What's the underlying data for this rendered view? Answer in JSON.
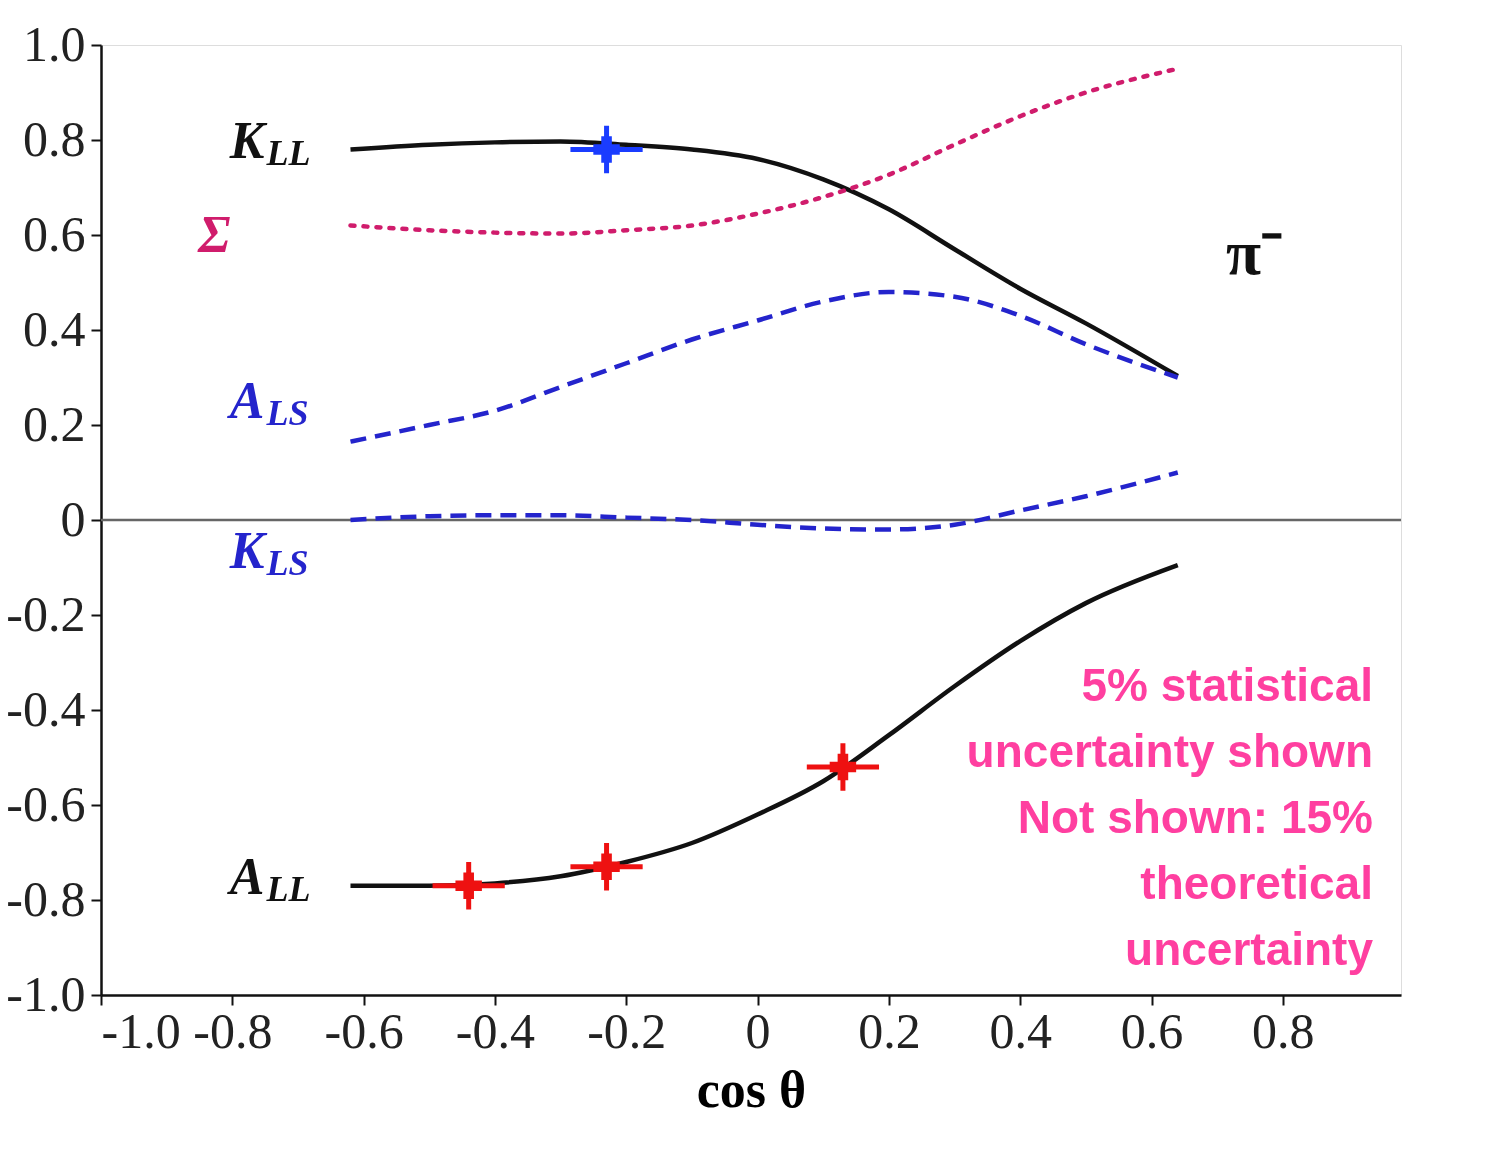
{
  "chart_data": {
    "type": "line",
    "xlabel": "cos θ",
    "annotations": [
      "π⁻",
      "5% statistical",
      "uncertainty shown",
      "Not shown: 15%",
      "theoretical",
      "uncertainty"
    ],
    "xlim": [
      -1.0,
      0.98
    ],
    "ylim": [
      -1.0,
      1.0
    ],
    "xticks": [
      {
        "value": -1.0,
        "label": "-1.0"
      },
      -0.8,
      -0.6,
      -0.4,
      -0.2,
      0,
      0.2,
      0.4,
      0.6,
      0.8
    ],
    "yticks": [
      {
        "value": -1.0,
        "label": "-1.0"
      },
      -0.8,
      -0.6,
      -0.4,
      -0.2,
      0,
      0.2,
      0.4,
      0.6,
      0.8,
      {
        "value": 1.0,
        "label": "1.0"
      }
    ],
    "grid": false,
    "ref_lines": [
      {
        "axis": "y",
        "value": 0,
        "color": "#666666"
      }
    ],
    "series": [
      {
        "name": "K$_{LL}$",
        "color": "#111111",
        "line_style": "solid",
        "x": [
          -0.62,
          -0.5,
          -0.4,
          -0.3,
          -0.2,
          -0.1,
          0,
          0.1,
          0.2,
          0.3,
          0.4,
          0.5,
          0.64
        ],
        "values": [
          0.78,
          0.79,
          0.795,
          0.797,
          0.79,
          0.78,
          0.76,
          0.717,
          0.654,
          0.57,
          0.487,
          0.414,
          0.303
        ]
      },
      {
        "name": "Σ",
        "color": "#d01c6c",
        "line_style": "dotted",
        "x": [
          -0.62,
          -0.5,
          -0.4,
          -0.3,
          -0.2,
          -0.1,
          0,
          0.1,
          0.2,
          0.3,
          0.4,
          0.5,
          0.64
        ],
        "values": [
          0.62,
          0.61,
          0.605,
          0.603,
          0.61,
          0.62,
          0.645,
          0.68,
          0.727,
          0.79,
          0.85,
          0.9,
          0.95
        ]
      },
      {
        "name": "A$_{LS}$",
        "color": "#2424cc",
        "line_style": "dashed",
        "x": [
          -0.62,
          -0.5,
          -0.4,
          -0.3,
          -0.2,
          -0.1,
          0,
          0.1,
          0.2,
          0.3,
          0.4,
          0.5,
          0.64
        ],
        "values": [
          0.165,
          0.2,
          0.23,
          0.28,
          0.33,
          0.38,
          0.42,
          0.46,
          0.48,
          0.47,
          0.43,
          0.37,
          0.3
        ]
      },
      {
        "name": "K$_{LS}$",
        "color": "#2424cc",
        "line_style": "dashed",
        "x": [
          -0.62,
          -0.5,
          -0.4,
          -0.3,
          -0.2,
          -0.1,
          0,
          0.1,
          0.2,
          0.3,
          0.4,
          0.5,
          0.64
        ],
        "values": [
          0.0,
          0.008,
          0.01,
          0.01,
          0.005,
          0.0,
          -0.01,
          -0.018,
          -0.02,
          -0.01,
          0.02,
          0.05,
          0.1
        ]
      },
      {
        "name": "A$_{LL}$",
        "color": "#111111",
        "line_style": "solid",
        "x": [
          -0.62,
          -0.5,
          -0.4,
          -0.3,
          -0.2,
          -0.1,
          0,
          0.1,
          0.2,
          0.3,
          0.4,
          0.5,
          0.64
        ],
        "values": [
          -0.77,
          -0.77,
          -0.765,
          -0.75,
          -0.72,
          -0.68,
          -0.62,
          -0.55,
          -0.453,
          -0.35,
          -0.255,
          -0.175,
          -0.095
        ]
      },
      {
        "type": "scatter",
        "marker": "cross",
        "color": "#1a3cff",
        "x": [
          -0.23
        ],
        "values": [
          0.78
        ],
        "errors": [
          0.05
        ],
        "xerrors": [
          0.055
        ]
      },
      {
        "type": "scatter",
        "marker": "cross",
        "color": "#ee1111",
        "x": [
          -0.44,
          -0.23,
          0.13
        ],
        "values": [
          -0.77,
          -0.73,
          -0.52
        ],
        "errors": [
          0.05,
          0.05,
          0.05
        ],
        "xerrors": [
          0.055,
          0.055,
          0.055
        ]
      }
    ]
  }
}
